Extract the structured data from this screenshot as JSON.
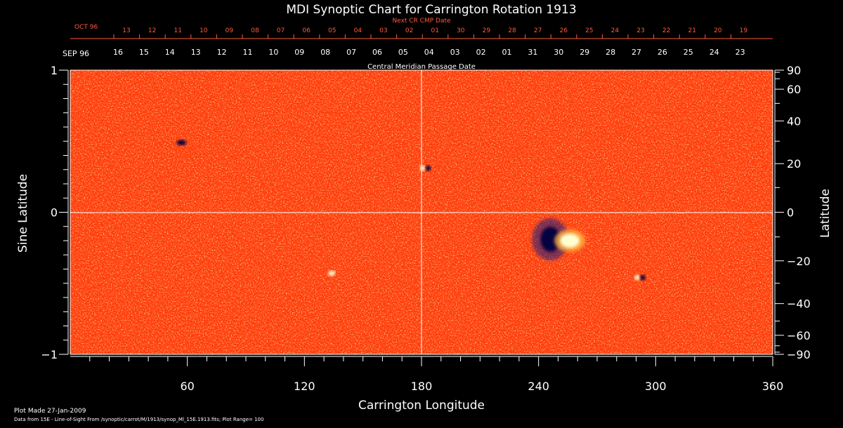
{
  "chart_data": {
    "type": "heatmap",
    "title": "MDI Synoptic Chart for Carrington Rotation 1913",
    "xlabel": "Carrington Longitude",
    "ylabel_left": "Sine Latitude",
    "ylabel_right": "Latitude",
    "xlim": [
      0,
      360
    ],
    "ylim": [
      -1,
      1
    ],
    "x_ticks": [
      "60",
      "120",
      "180",
      "240",
      "300",
      "360"
    ],
    "x_tick_values": [
      60,
      120,
      180,
      240,
      300,
      360
    ],
    "y_left_ticks": [
      "1",
      "0",
      "−1"
    ],
    "y_left_tick_values": [
      1,
      0,
      -1
    ],
    "y_right_ticks": [
      "90",
      "60",
      "40",
      "20",
      "0",
      "−20",
      "−40",
      "−60",
      "−90"
    ],
    "y_right_tick_values": [
      90,
      60,
      40,
      20,
      0,
      -20,
      -40,
      -60,
      -90
    ],
    "crosshair": {
      "longitude": 180,
      "sine_latitude": 0
    },
    "grid": false,
    "colormap": [
      "#000040",
      "#1a1a80",
      "#ff3000",
      "#ff6a10",
      "#ffb040",
      "#ffffd0"
    ],
    "features": [
      {
        "label": "negative polarity region",
        "longitude": 246,
        "sine_latitude": -0.19,
        "polarity": "negative"
      },
      {
        "label": "positive polarity region",
        "longitude": 256,
        "sine_latitude": -0.2,
        "polarity": "positive"
      },
      {
        "label": "small bipole",
        "longitude": 57,
        "sine_latitude": 0.49,
        "polarity": "negative"
      },
      {
        "label": "small bipole",
        "longitude": 182,
        "sine_latitude": 0.31,
        "polarity": "mixed"
      },
      {
        "label": "small bipole",
        "longitude": 134,
        "sine_latitude": -0.43,
        "polarity": "positive"
      },
      {
        "label": "small bipole",
        "longitude": 292,
        "sine_latitude": -0.46,
        "polarity": "mixed"
      }
    ]
  },
  "top_axis": {
    "next_cr_label": "Next CR CMP Date",
    "oct_label": "OCT 96",
    "next_cr_dates": [
      "13",
      "12",
      "11",
      "10",
      "09",
      "08",
      "07",
      "06",
      "05",
      "04",
      "03",
      "02",
      "01",
      "30",
      "29",
      "28",
      "27",
      "26",
      "25",
      "24",
      "23",
      "22",
      "21",
      "20",
      "19"
    ],
    "sep_label": "SEP 96",
    "cmp_dates": [
      "16",
      "15",
      "14",
      "13",
      "12",
      "11",
      "10",
      "09",
      "08",
      "07",
      "06",
      "05",
      "04",
      "03",
      "02",
      "01",
      "31",
      "30",
      "29",
      "28",
      "27",
      "26",
      "25",
      "24",
      "23"
    ],
    "cmp_label": "Central Meridian Passage Date"
  },
  "footer": {
    "plot_made": "Plot Made 27-Jan-2009",
    "data_note": "Data from 15E - Line-of-Sight From /synoptic/carrot/M/1913/synop_Ml_15E.1913.fits; Plot Range= 100"
  }
}
